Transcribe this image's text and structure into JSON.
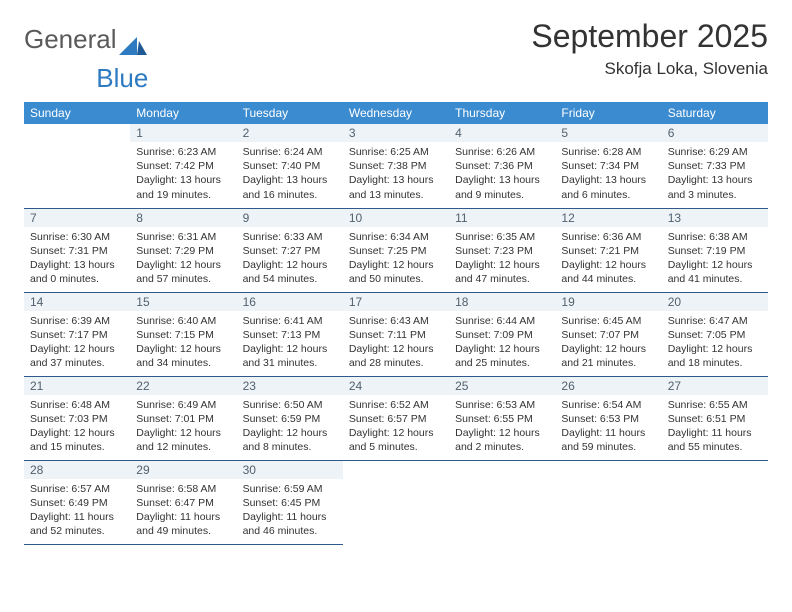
{
  "brand": {
    "word1": "General",
    "word2": "Blue"
  },
  "header": {
    "title": "September 2025",
    "location": "Skofja Loka, Slovenia"
  },
  "colors": {
    "header_bg": "#3b8bd0",
    "header_text": "#ffffff",
    "daynum_bg": "#eef3f7",
    "daynum_text": "#51616f",
    "divider": "#2e5a8a",
    "logo_gray": "#5a5a5a",
    "logo_blue": "#2f7bc1"
  },
  "weekdays": [
    "Sunday",
    "Monday",
    "Tuesday",
    "Wednesday",
    "Thursday",
    "Friday",
    "Saturday"
  ],
  "days": [
    {
      "n": 1,
      "sr": "6:23 AM",
      "ss": "7:42 PM",
      "dl": "13 hours and 19 minutes."
    },
    {
      "n": 2,
      "sr": "6:24 AM",
      "ss": "7:40 PM",
      "dl": "13 hours and 16 minutes."
    },
    {
      "n": 3,
      "sr": "6:25 AM",
      "ss": "7:38 PM",
      "dl": "13 hours and 13 minutes."
    },
    {
      "n": 4,
      "sr": "6:26 AM",
      "ss": "7:36 PM",
      "dl": "13 hours and 9 minutes."
    },
    {
      "n": 5,
      "sr": "6:28 AM",
      "ss": "7:34 PM",
      "dl": "13 hours and 6 minutes."
    },
    {
      "n": 6,
      "sr": "6:29 AM",
      "ss": "7:33 PM",
      "dl": "13 hours and 3 minutes."
    },
    {
      "n": 7,
      "sr": "6:30 AM",
      "ss": "7:31 PM",
      "dl": "13 hours and 0 minutes."
    },
    {
      "n": 8,
      "sr": "6:31 AM",
      "ss": "7:29 PM",
      "dl": "12 hours and 57 minutes."
    },
    {
      "n": 9,
      "sr": "6:33 AM",
      "ss": "7:27 PM",
      "dl": "12 hours and 54 minutes."
    },
    {
      "n": 10,
      "sr": "6:34 AM",
      "ss": "7:25 PM",
      "dl": "12 hours and 50 minutes."
    },
    {
      "n": 11,
      "sr": "6:35 AM",
      "ss": "7:23 PM",
      "dl": "12 hours and 47 minutes."
    },
    {
      "n": 12,
      "sr": "6:36 AM",
      "ss": "7:21 PM",
      "dl": "12 hours and 44 minutes."
    },
    {
      "n": 13,
      "sr": "6:38 AM",
      "ss": "7:19 PM",
      "dl": "12 hours and 41 minutes."
    },
    {
      "n": 14,
      "sr": "6:39 AM",
      "ss": "7:17 PM",
      "dl": "12 hours and 37 minutes."
    },
    {
      "n": 15,
      "sr": "6:40 AM",
      "ss": "7:15 PM",
      "dl": "12 hours and 34 minutes."
    },
    {
      "n": 16,
      "sr": "6:41 AM",
      "ss": "7:13 PM",
      "dl": "12 hours and 31 minutes."
    },
    {
      "n": 17,
      "sr": "6:43 AM",
      "ss": "7:11 PM",
      "dl": "12 hours and 28 minutes."
    },
    {
      "n": 18,
      "sr": "6:44 AM",
      "ss": "7:09 PM",
      "dl": "12 hours and 25 minutes."
    },
    {
      "n": 19,
      "sr": "6:45 AM",
      "ss": "7:07 PM",
      "dl": "12 hours and 21 minutes."
    },
    {
      "n": 20,
      "sr": "6:47 AM",
      "ss": "7:05 PM",
      "dl": "12 hours and 18 minutes."
    },
    {
      "n": 21,
      "sr": "6:48 AM",
      "ss": "7:03 PM",
      "dl": "12 hours and 15 minutes."
    },
    {
      "n": 22,
      "sr": "6:49 AM",
      "ss": "7:01 PM",
      "dl": "12 hours and 12 minutes."
    },
    {
      "n": 23,
      "sr": "6:50 AM",
      "ss": "6:59 PM",
      "dl": "12 hours and 8 minutes."
    },
    {
      "n": 24,
      "sr": "6:52 AM",
      "ss": "6:57 PM",
      "dl": "12 hours and 5 minutes."
    },
    {
      "n": 25,
      "sr": "6:53 AM",
      "ss": "6:55 PM",
      "dl": "12 hours and 2 minutes."
    },
    {
      "n": 26,
      "sr": "6:54 AM",
      "ss": "6:53 PM",
      "dl": "11 hours and 59 minutes."
    },
    {
      "n": 27,
      "sr": "6:55 AM",
      "ss": "6:51 PM",
      "dl": "11 hours and 55 minutes."
    },
    {
      "n": 28,
      "sr": "6:57 AM",
      "ss": "6:49 PM",
      "dl": "11 hours and 52 minutes."
    },
    {
      "n": 29,
      "sr": "6:58 AM",
      "ss": "6:47 PM",
      "dl": "11 hours and 49 minutes."
    },
    {
      "n": 30,
      "sr": "6:59 AM",
      "ss": "6:45 PM",
      "dl": "11 hours and 46 minutes."
    }
  ],
  "labels": {
    "sunrise": "Sunrise:",
    "sunset": "Sunset:",
    "daylight": "Daylight:"
  },
  "layout": {
    "first_weekday_index": 1,
    "rows": 5,
    "cols": 7
  }
}
